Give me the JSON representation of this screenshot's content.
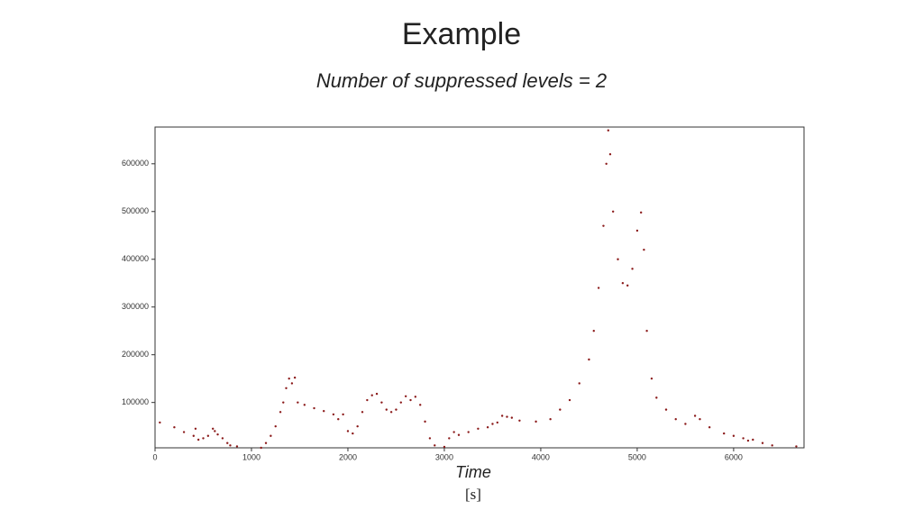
{
  "chart_data": {
    "type": "scatter",
    "title": "Example",
    "subtitle": "Number of suppressed levels = 2",
    "x_label": "Time",
    "x_unit": "[s]",
    "color": "#8b1a1a",
    "x": [
      50,
      200,
      300,
      400,
      420,
      450,
      500,
      550,
      600,
      620,
      650,
      700,
      750,
      780,
      850,
      1100,
      1150,
      1200,
      1250,
      1300,
      1330,
      1360,
      1390,
      1420,
      1450,
      1480,
      1550,
      1650,
      1750,
      1850,
      1900,
      1950,
      2000,
      2050,
      2100,
      2150,
      2200,
      2250,
      2300,
      2350,
      2400,
      2450,
      2500,
      2550,
      2600,
      2650,
      2700,
      2750,
      2800,
      2850,
      2900,
      3000,
      3050,
      3100,
      3150,
      3250,
      3350,
      3450,
      3500,
      3550,
      3600,
      3650,
      3700,
      3780,
      3950,
      4100,
      4200,
      4300,
      4400,
      4500,
      4550,
      4600,
      4650,
      4680,
      4700,
      4720,
      4750,
      4800,
      4850,
      4900,
      4950,
      5000,
      5040,
      5070,
      5100,
      5150,
      5200,
      5300,
      5400,
      5500,
      5600,
      5650,
      5750,
      5900,
      6000,
      6100,
      6150,
      6200,
      6300,
      6400,
      6650
    ],
    "series": [
      {
        "values": [
          58000,
          48000,
          38000,
          30000,
          45000,
          22000,
          25000,
          30000,
          45000,
          40000,
          33000,
          25000,
          15000,
          10000,
          8000,
          5000,
          15000,
          30000,
          50000,
          80000,
          100000,
          130000,
          150000,
          140000,
          152000,
          100000,
          95000,
          88000,
          82000,
          75000,
          65000,
          75000,
          40000,
          35000,
          50000,
          80000,
          105000,
          115000,
          118000,
          100000,
          85000,
          80000,
          85000,
          100000,
          113000,
          105000,
          112000,
          95000,
          60000,
          25000,
          10000,
          7000,
          25000,
          38000,
          32000,
          38000,
          45000,
          48000,
          55000,
          58000,
          72000,
          70000,
          68000,
          62000,
          60000,
          65000,
          85000,
          105000,
          140000,
          190000,
          250000,
          340000,
          470000,
          600000,
          670000,
          620000,
          500000,
          400000,
          350000,
          345000,
          380000,
          460000,
          498000,
          420000,
          250000,
          150000,
          110000,
          85000,
          65000,
          55000,
          72000,
          65000,
          48000,
          35000,
          30000,
          25000,
          20000,
          22000,
          15000,
          10000,
          8000
        ]
      }
    ],
    "xlim": [
      0,
      6730
    ],
    "ylim": [
      5000,
      677000
    ],
    "xticks": [
      0,
      1000,
      2000,
      3000,
      4000,
      5000,
      6000
    ],
    "yticks": [
      100000,
      200000,
      300000,
      400000,
      500000,
      600000
    ]
  }
}
